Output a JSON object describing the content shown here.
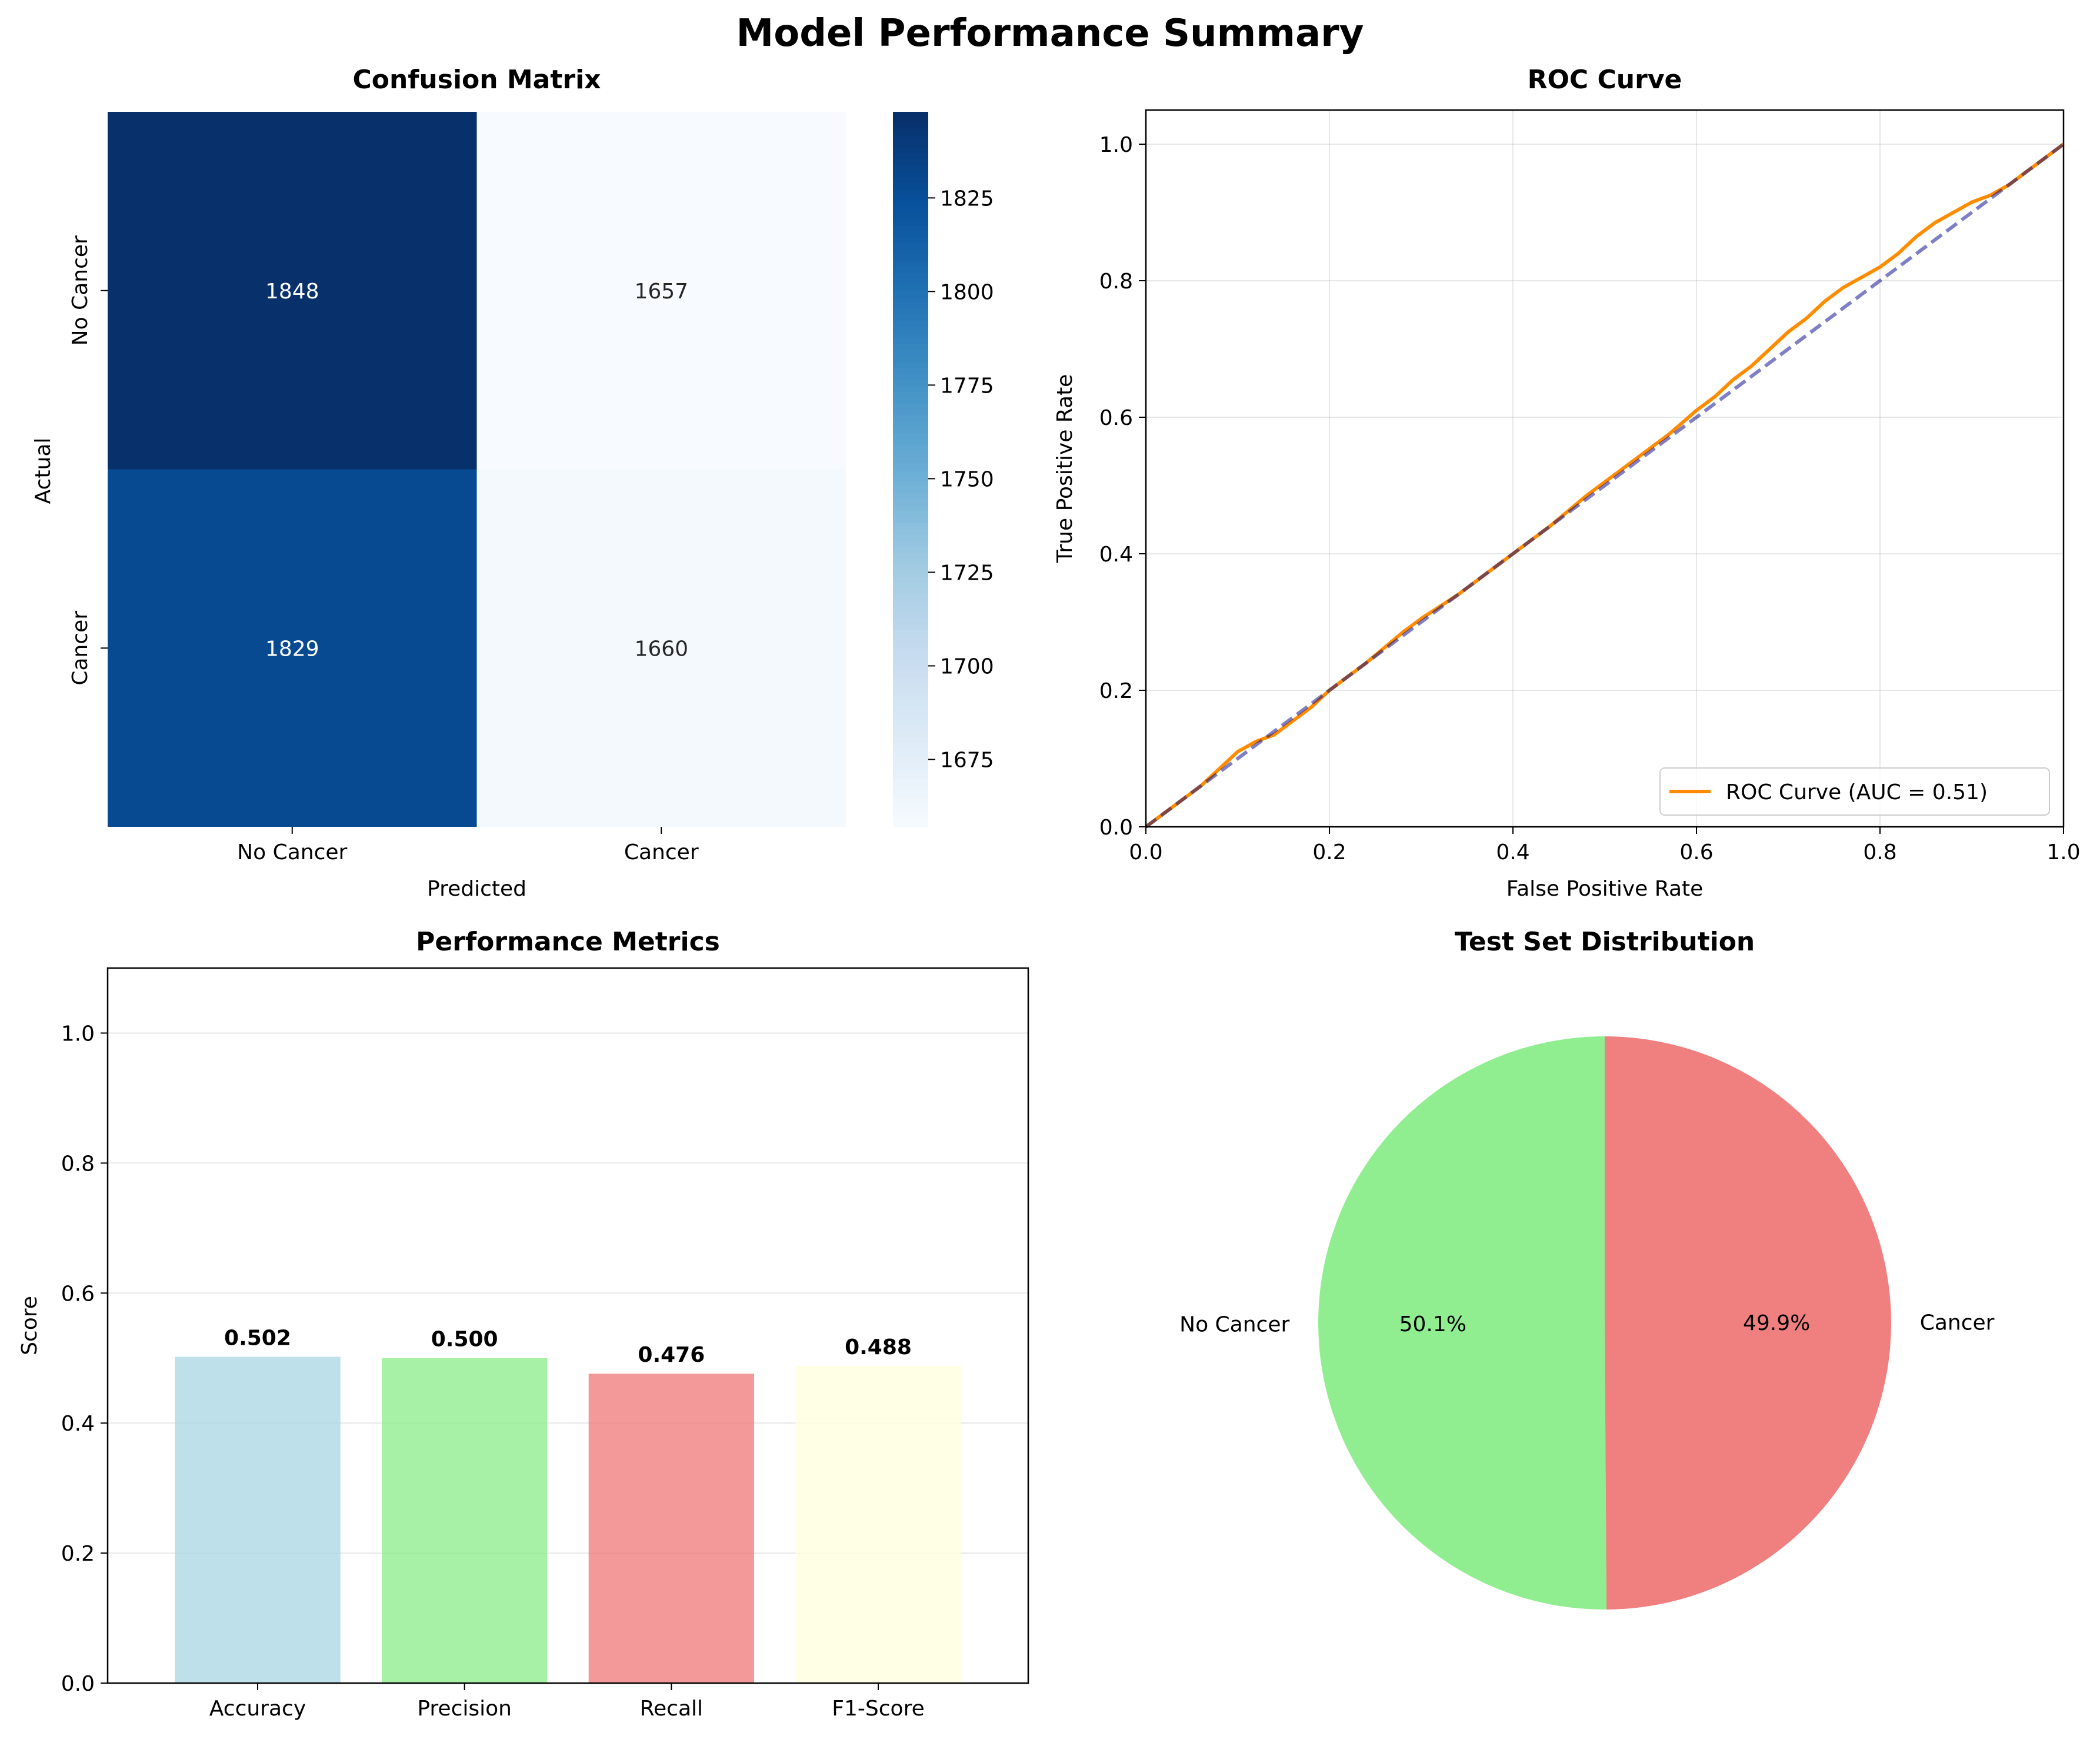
{
  "figure": {
    "title": "Model Performance Summary"
  },
  "chart_data": [
    {
      "type": "heatmap",
      "title": "Confusion Matrix",
      "xlabel": "Predicted",
      "ylabel": "Actual",
      "x_categories": [
        "No Cancer",
        "Cancer"
      ],
      "y_categories": [
        "No Cancer",
        "Cancer"
      ],
      "values": [
        [
          1848,
          1657
        ],
        [
          1829,
          1660
        ]
      ],
      "colormap": "Blues",
      "colorbar": {
        "range": [
          1657,
          1848
        ],
        "ticks": [
          "1675",
          "1700",
          "1725",
          "1750",
          "1775",
          "1800",
          "1825"
        ]
      }
    },
    {
      "type": "line",
      "title": "ROC Curve",
      "xlabel": "False Positive Rate",
      "ylabel": "True Positive Rate",
      "xlim": [
        0,
        1
      ],
      "ylim": [
        0,
        1.05
      ],
      "xticks": [
        "0.0",
        "0.2",
        "0.4",
        "0.6",
        "0.8",
        "1.0"
      ],
      "yticks": [
        "0.0",
        "0.2",
        "0.4",
        "0.6",
        "0.8",
        "1.0"
      ],
      "grid": true,
      "legend": "lower-right",
      "series": [
        {
          "name": "ROC Curve (AUC = 0.51)",
          "color": "#ff8c00",
          "style": "solid",
          "x": [
            0,
            0.02,
            0.04,
            0.06,
            0.08,
            0.1,
            0.12,
            0.14,
            0.16,
            0.18,
            0.2,
            0.24,
            0.28,
            0.3,
            0.34,
            0.38,
            0.4,
            0.44,
            0.48,
            0.52,
            0.55,
            0.57,
            0.6,
            0.62,
            0.64,
            0.66,
            0.68,
            0.7,
            0.72,
            0.74,
            0.76,
            0.78,
            0.8,
            0.82,
            0.84,
            0.86,
            0.88,
            0.9,
            0.92,
            0.94,
            0.96,
            0.98,
            1.0
          ],
          "y": [
            0,
            0.02,
            0.04,
            0.06,
            0.085,
            0.11,
            0.125,
            0.135,
            0.155,
            0.175,
            0.2,
            0.24,
            0.285,
            0.305,
            0.34,
            0.38,
            0.4,
            0.44,
            0.485,
            0.525,
            0.555,
            0.575,
            0.61,
            0.63,
            0.655,
            0.675,
            0.7,
            0.725,
            0.745,
            0.77,
            0.79,
            0.805,
            0.82,
            0.84,
            0.865,
            0.885,
            0.9,
            0.915,
            0.925,
            0.94,
            0.96,
            0.98,
            1.0
          ]
        },
        {
          "color": "#00008b",
          "style": "dashed",
          "x": [
            0,
            1
          ],
          "y": [
            0,
            1
          ]
        }
      ]
    },
    {
      "type": "bar",
      "title": "Performance Metrics",
      "ylabel": "Score",
      "categories": [
        "Accuracy",
        "Precision",
        "Recall",
        "F1-Score"
      ],
      "values": [
        0.502,
        0.5,
        0.476,
        0.488
      ],
      "value_labels": [
        "0.502",
        "0.500",
        "0.476",
        "0.488"
      ],
      "colors": [
        "#add8e6",
        "#90ee90",
        "#f08080",
        "#ffffe0"
      ],
      "ylim": [
        0,
        1.1
      ],
      "yticks": [
        "0.0",
        "0.2",
        "0.4",
        "0.6",
        "0.8",
        "1.0"
      ],
      "grid": true
    },
    {
      "type": "pie",
      "title": "Test Set Distribution",
      "labels": [
        "No Cancer",
        "Cancer"
      ],
      "values": [
        50.1,
        49.9
      ],
      "value_labels": [
        "50.1%",
        "49.9%"
      ],
      "colors": [
        "#90ee90",
        "#f08080"
      ]
    }
  ]
}
